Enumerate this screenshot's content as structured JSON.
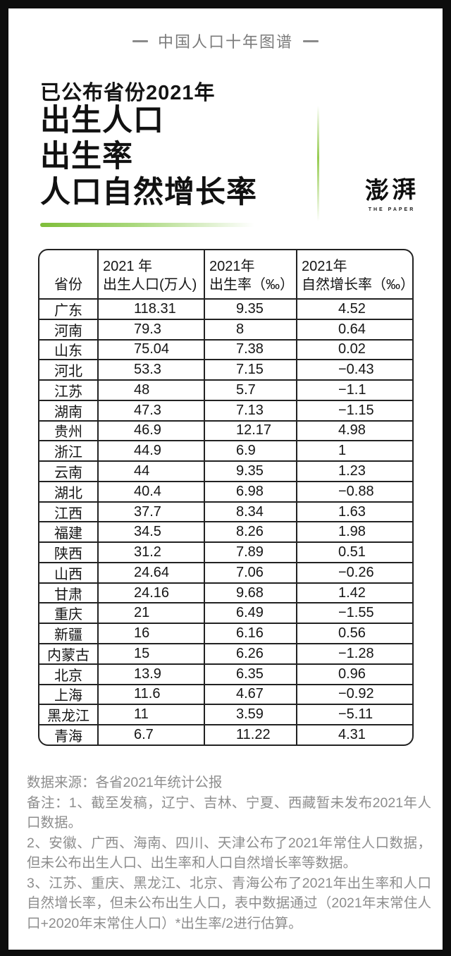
{
  "banner": {
    "title": "中国人口十年图谱"
  },
  "title": {
    "kicker": "已公布省份2021年",
    "line1": "出生人口",
    "line2": "出生率",
    "line3": "人口自然增长率"
  },
  "logo": {
    "name_cn": "澎湃",
    "name_en": "THE PAPER"
  },
  "table": {
    "header": {
      "col1": "省份",
      "col2_line1": "2021 年",
      "col2_line2": "出生人口(万人)",
      "col3_line1": "2021年",
      "col3_line2": "出生率（‰）",
      "col4_line1": "2021年",
      "col4_line2": "自然增长率（‰）"
    },
    "rows": [
      {
        "province": "广东",
        "births": "118.31",
        "birth_rate": "9.35",
        "growth_rate": "4.52"
      },
      {
        "province": "河南",
        "births": "79.3",
        "birth_rate": "8",
        "growth_rate": "0.64"
      },
      {
        "province": "山东",
        "births": "75.04",
        "birth_rate": "7.38",
        "growth_rate": "0.02"
      },
      {
        "province": "河北",
        "births": "53.3",
        "birth_rate": "7.15",
        "growth_rate": "−0.43"
      },
      {
        "province": "江苏",
        "births": "48",
        "birth_rate": "5.7",
        "growth_rate": "−1.1"
      },
      {
        "province": "湖南",
        "births": "47.3",
        "birth_rate": "7.13",
        "growth_rate": "−1.15"
      },
      {
        "province": "贵州",
        "births": "46.9",
        "birth_rate": "12.17",
        "growth_rate": "4.98"
      },
      {
        "province": "浙江",
        "births": "44.9",
        "birth_rate": "6.9",
        "growth_rate": "1"
      },
      {
        "province": "云南",
        "births": "44",
        "birth_rate": "9.35",
        "growth_rate": "1.23"
      },
      {
        "province": "湖北",
        "births": "40.4",
        "birth_rate": "6.98",
        "growth_rate": "−0.88"
      },
      {
        "province": "江西",
        "births": "37.7",
        "birth_rate": "8.34",
        "growth_rate": "1.63"
      },
      {
        "province": "福建",
        "births": "34.5",
        "birth_rate": "8.26",
        "growth_rate": "1.98"
      },
      {
        "province": "陕西",
        "births": "31.2",
        "birth_rate": "7.89",
        "growth_rate": "0.51"
      },
      {
        "province": "山西",
        "births": "24.64",
        "birth_rate": "7.06",
        "growth_rate": "−0.26"
      },
      {
        "province": "甘肃",
        "births": "24.16",
        "birth_rate": "9.68",
        "growth_rate": "1.42"
      },
      {
        "province": "重庆",
        "births": "21",
        "birth_rate": "6.49",
        "growth_rate": "−1.55"
      },
      {
        "province": "新疆",
        "births": "16",
        "birth_rate": "6.16",
        "growth_rate": "0.56"
      },
      {
        "province": "内蒙古",
        "births": "15",
        "birth_rate": "6.26",
        "growth_rate": "−1.28"
      },
      {
        "province": "北京",
        "births": "13.9",
        "birth_rate": "6.35",
        "growth_rate": "0.96"
      },
      {
        "province": "上海",
        "births": "11.6",
        "birth_rate": "4.67",
        "growth_rate": "−0.92"
      },
      {
        "province": "黑龙江",
        "births": "11",
        "birth_rate": "3.59",
        "growth_rate": "−5.11"
      },
      {
        "province": "青海",
        "births": "6.7",
        "birth_rate": "11.22",
        "growth_rate": "4.31"
      }
    ]
  },
  "footer": {
    "source": "数据来源：各省2021年统计公报",
    "note1": "备注：1、截至发稿，辽宁、吉林、宁夏、西藏暂未发布2021年人口数据。",
    "note2": "2、安徽、广西、海南、四川、天津公布了2021年常住人口数据，但未公布出生人口、出生率和人口自然增长率等数据。",
    "note3": "3、江苏、重庆、黑龙江、北京、青海公布了2021年出生率和人口自然增长率，但未公布出生人口，表中数据通过（2021年末常住人口+2020年末常住人口）*出生率/2进行估算。"
  },
  "colors": {
    "accent_green": "#7fbe3a",
    "frame_black": "#0d0d0d",
    "note_gray": "#8d8d8d"
  },
  "chart_data": {
    "type": "table",
    "title": "已公布省份2021年 出生人口 出生率 人口自然增长率",
    "source": "各省2021年统计公报",
    "columns": [
      "省份",
      "2021年出生人口(万人)",
      "2021年出生率（‰）",
      "2021年自然增长率（‰）"
    ],
    "rows": [
      [
        "广东",
        118.31,
        9.35,
        4.52
      ],
      [
        "河南",
        79.3,
        8,
        0.64
      ],
      [
        "山东",
        75.04,
        7.38,
        0.02
      ],
      [
        "河北",
        53.3,
        7.15,
        -0.43
      ],
      [
        "江苏",
        48,
        5.7,
        -1.1
      ],
      [
        "湖南",
        47.3,
        7.13,
        -1.15
      ],
      [
        "贵州",
        46.9,
        12.17,
        4.98
      ],
      [
        "浙江",
        44.9,
        6.9,
        1
      ],
      [
        "云南",
        44,
        9.35,
        1.23
      ],
      [
        "湖北",
        40.4,
        6.98,
        -0.88
      ],
      [
        "江西",
        37.7,
        8.34,
        1.63
      ],
      [
        "福建",
        34.5,
        8.26,
        1.98
      ],
      [
        "陕西",
        31.2,
        7.89,
        0.51
      ],
      [
        "山西",
        24.64,
        7.06,
        -0.26
      ],
      [
        "甘肃",
        24.16,
        9.68,
        1.42
      ],
      [
        "重庆",
        21,
        6.49,
        -1.55
      ],
      [
        "新疆",
        16,
        6.16,
        0.56
      ],
      [
        "内蒙古",
        15,
        6.26,
        -1.28
      ],
      [
        "北京",
        13.9,
        6.35,
        0.96
      ],
      [
        "上海",
        11.6,
        4.67,
        -0.92
      ],
      [
        "黑龙江",
        11,
        3.59,
        -5.11
      ],
      [
        "青海",
        6.7,
        11.22,
        4.31
      ]
    ]
  }
}
